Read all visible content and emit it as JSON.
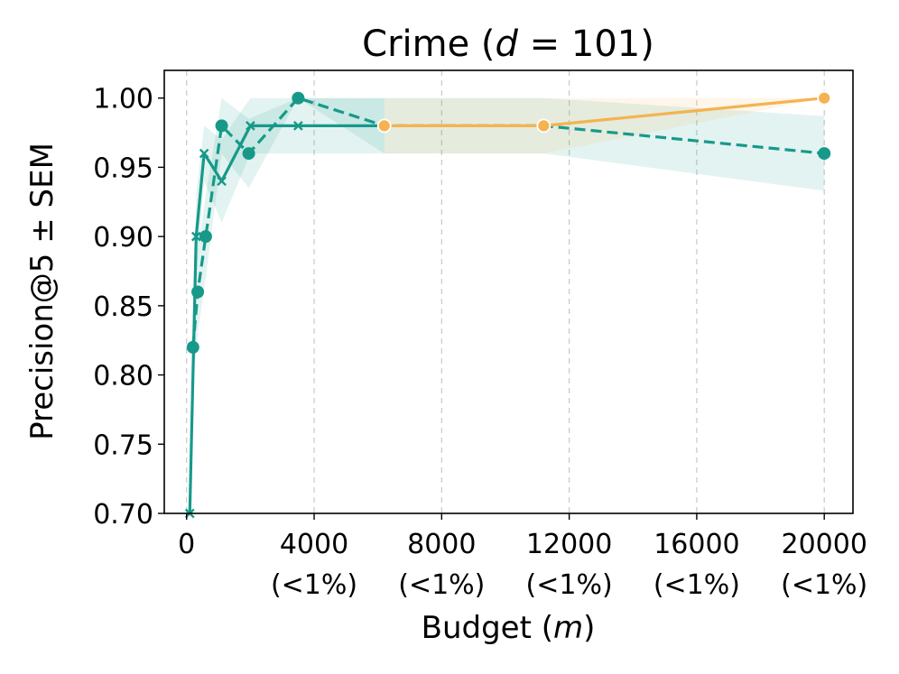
{
  "chart_data": {
    "type": "line",
    "title": "Crime (d = 101)",
    "title_parts": {
      "prefix": "Crime (",
      "variable": "d",
      "suffix": " = 101)"
    },
    "xlabel_parts": {
      "prefix": "Budget (",
      "variable": "m",
      "suffix": ")"
    },
    "ylabel": "Precision@5 ± SEM",
    "xlim": [
      -700,
      20900
    ],
    "ylim": [
      0.7,
      1.02
    ],
    "xticks": [
      {
        "value": 0,
        "label": "0",
        "sublabel": ""
      },
      {
        "value": 4000,
        "label": "4000",
        "sublabel": "(<1%)"
      },
      {
        "value": 8000,
        "label": "8000",
        "sublabel": "(<1%)"
      },
      {
        "value": 12000,
        "label": "12000",
        "sublabel": "(<1%)"
      },
      {
        "value": 16000,
        "label": "16000",
        "sublabel": "(<1%)"
      },
      {
        "value": 20000,
        "label": "20000",
        "sublabel": "(<1%)"
      }
    ],
    "yticks": [
      "0.70",
      "0.75",
      "0.80",
      "0.85",
      "0.90",
      "0.95",
      "1.00"
    ],
    "grid": "x-dashed",
    "series": [
      {
        "color": "#17998a",
        "line": "solid",
        "marker": "cross",
        "points": [
          {
            "x": 100,
            "y": 0.7,
            "lo": 0.7,
            "hi": 0.7
          },
          {
            "x": 300,
            "y": 0.9,
            "lo": 0.87,
            "hi": 0.93
          },
          {
            "x": 550,
            "y": 0.96,
            "lo": 0.94,
            "hi": 0.98
          },
          {
            "x": 1100,
            "y": 0.94,
            "lo": 0.91,
            "hi": 0.97
          },
          {
            "x": 2000,
            "y": 0.98,
            "lo": 0.96,
            "hi": 1.0
          },
          {
            "x": 3500,
            "y": 0.98,
            "lo": 0.96,
            "hi": 1.0
          },
          {
            "x": 6200,
            "y": 0.98,
            "lo": 0.96,
            "hi": 1.0
          }
        ]
      },
      {
        "color": "#17998a",
        "line": "dashed",
        "marker": "circle",
        "points": [
          {
            "x": 200,
            "y": 0.82,
            "lo": 0.79,
            "hi": 0.85
          },
          {
            "x": 350,
            "y": 0.86,
            "lo": 0.83,
            "hi": 0.89
          },
          {
            "x": 600,
            "y": 0.9,
            "lo": 0.87,
            "hi": 0.93
          },
          {
            "x": 1100,
            "y": 0.98,
            "lo": 0.96,
            "hi": 1.0
          },
          {
            "x": 1950,
            "y": 0.96,
            "lo": 0.935,
            "hi": 0.985
          },
          {
            "x": 3500,
            "y": 1.0,
            "lo": 1.0,
            "hi": 1.0
          },
          {
            "x": 6200,
            "y": 0.98,
            "lo": 0.96,
            "hi": 1.0
          },
          {
            "x": 11200,
            "y": 0.98,
            "lo": 0.96,
            "hi": 1.0
          },
          {
            "x": 20000,
            "y": 0.96,
            "lo": 0.933,
            "hi": 0.987
          }
        ]
      },
      {
        "color": "#f4b350",
        "line": "solid",
        "marker": "circle-white-edge",
        "points": [
          {
            "x": 6200,
            "y": 0.98,
            "lo": 0.96,
            "hi": 1.0
          },
          {
            "x": 11200,
            "y": 0.98,
            "lo": 0.96,
            "hi": 1.0
          },
          {
            "x": 20000,
            "y": 1.0,
            "lo": 1.0,
            "hi": 1.0
          }
        ]
      }
    ]
  }
}
